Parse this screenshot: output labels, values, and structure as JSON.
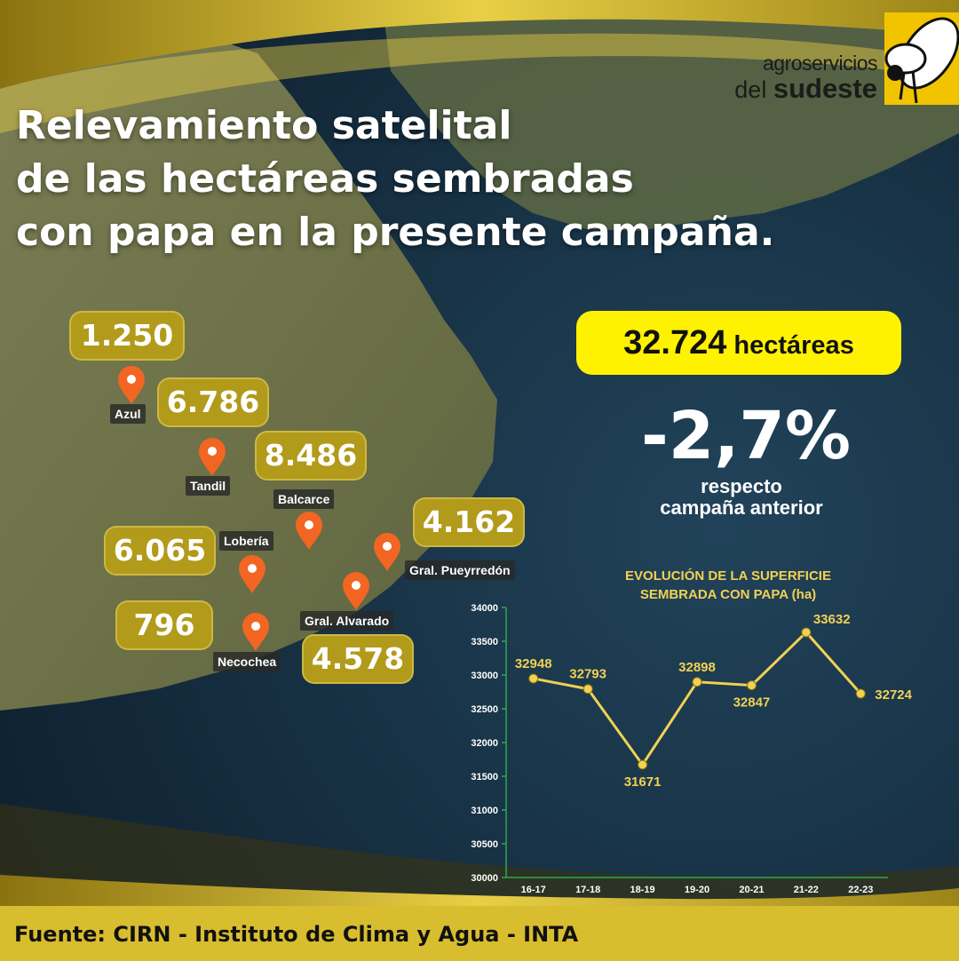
{
  "title_lines": [
    "Relevamiento satelital",
    "de las hectáreas sembradas",
    "con papa en la presente campaña."
  ],
  "brand": {
    "line1": "agroservicios",
    "line2_a": "del",
    "line2_b": "sudeste"
  },
  "summary": {
    "total_value": "32.724",
    "total_unit": "hectáreas",
    "change": "-2,7%",
    "change_note_1": "respecto",
    "change_note_2": "campaña anterior"
  },
  "locations": [
    {
      "city": "Azul",
      "value": "1.250"
    },
    {
      "city": "Tandil",
      "value": "6.786"
    },
    {
      "city": "Balcarce",
      "value": "8.486"
    },
    {
      "city": "Lobería",
      "value": "6.065"
    },
    {
      "city": "Necochea",
      "value": "796"
    },
    {
      "city": "Gral. Alvarado",
      "value": "4.578"
    },
    {
      "city": "Gral. Pueyrredón",
      "value": "4.162"
    }
  ],
  "chart_data": {
    "type": "line",
    "title": "EVOLUCIÓN DE LA SUPERFICIE SEMBRADA CON PAPA (ha)",
    "title_lines": [
      "EVOLUCIÓN DE LA SUPERFICIE",
      "SEMBRADA CON PAPA (ha)"
    ],
    "categories": [
      "16-17",
      "17-18",
      "18-19",
      "19-20",
      "20-21",
      "21-22",
      "22-23"
    ],
    "values": [
      32948,
      32793,
      31671,
      32898,
      32847,
      33632,
      32724
    ],
    "ylim": [
      30000,
      34000
    ],
    "yticks": [
      30000,
      30500,
      31000,
      31500,
      32000,
      32500,
      33000,
      33500,
      34000
    ],
    "xlabel": "",
    "ylabel": "",
    "grid": false,
    "color": "#f1d154"
  },
  "colors": {
    "accent_yellow": "#fff200",
    "badge_gold": "#b29a1a",
    "pin_orange": "#f26522",
    "line_gold": "#f1d154"
  },
  "footer": "Fuente: CIRN  - Instituto de Clima y Agua - INTA"
}
